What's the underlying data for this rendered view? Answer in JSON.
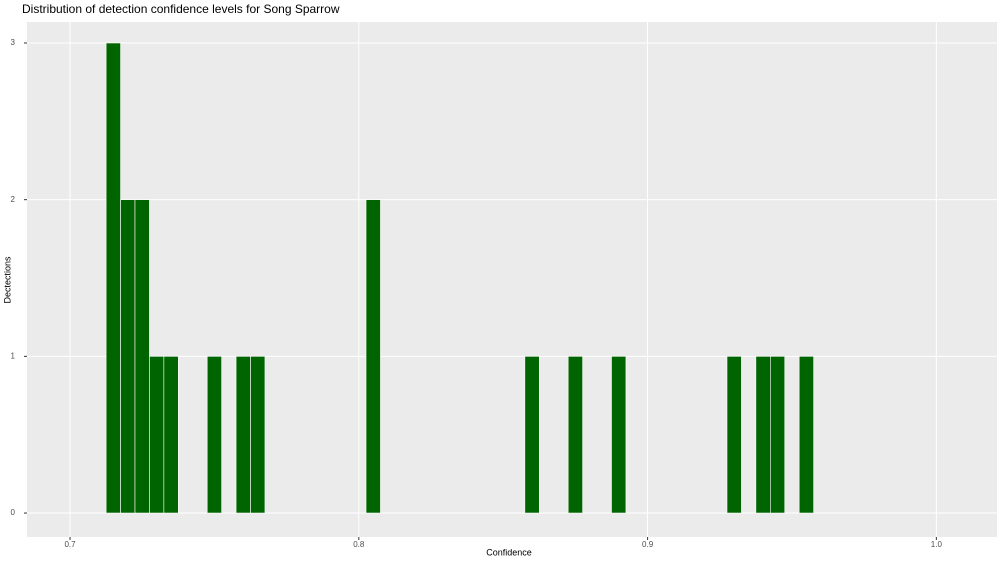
{
  "chart_data": {
    "type": "histogram",
    "title": "Distribution of detection confidence levels for Song Sparrow",
    "x_label": "Confidence",
    "y_label": "Dectections",
    "bins": [
      0.7125,
      0.7175,
      0.7225,
      0.7275,
      0.7325,
      0.7375,
      0.7425,
      0.7475,
      0.7525,
      0.7575,
      0.7625,
      0.7675,
      0.7725,
      0.7775,
      0.7825,
      0.7875,
      0.7925,
      0.7975,
      0.8025,
      0.8075,
      0.8125,
      0.8175,
      0.8225,
      0.8275,
      0.8325,
      0.8375,
      0.8425,
      0.8475,
      0.8525,
      0.8575,
      0.8625,
      0.8675,
      0.8725,
      0.8775,
      0.8825,
      0.8875,
      0.8925,
      0.8975,
      0.9025,
      0.9075,
      0.9125,
      0.9175,
      0.9225,
      0.9275,
      0.9325,
      0.9375,
      0.9425,
      0.9475,
      0.9525,
      0.9575
    ],
    "values": [
      3,
      2,
      2,
      1,
      1,
      0,
      0,
      1,
      0,
      1,
      1,
      0,
      0,
      0,
      0,
      0,
      0,
      0,
      2,
      0,
      0,
      0,
      0,
      0,
      0,
      0,
      0,
      0,
      0,
      1,
      0,
      0,
      1,
      0,
      0,
      1,
      0,
      0,
      0,
      0,
      0,
      0,
      0,
      1,
      0,
      1,
      1,
      0,
      1
    ],
    "color": "#006400",
    "xlim": [
      0.6851,
      1.021
    ],
    "ylim": [
      -0.153,
      3.134
    ],
    "xticks": [
      0.7,
      0.8,
      0.9,
      {
        "value": 1,
        "label": "1.0"
      }
    ],
    "yticks": [
      0,
      1,
      2,
      3
    ],
    "grid": true
  }
}
